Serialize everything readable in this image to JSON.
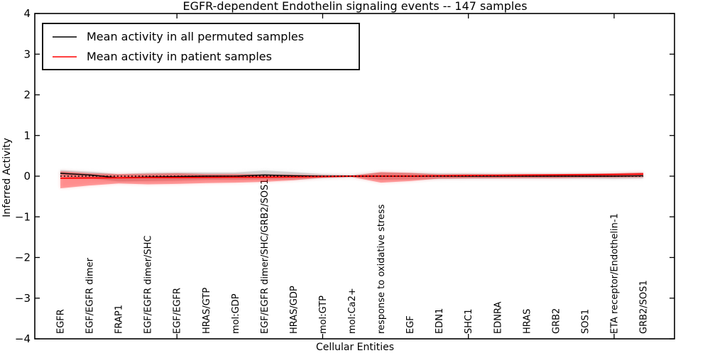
{
  "figure": {
    "title": "EGFR-dependent Endothelin signaling events -- 147 samples",
    "xlabel": "Cellular Entities",
    "ylabel": "Inferred Activity"
  },
  "legend": {
    "entries": [
      {
        "label": "Mean activity in all permuted samples",
        "color": "#000000"
      },
      {
        "label": "Mean activity in patient samples",
        "color": "#ff0000"
      }
    ]
  },
  "chart_data": {
    "type": "line",
    "title": "EGFR-dependent Endothelin signaling events -- 147 samples",
    "xlabel": "Cellular Entities",
    "ylabel": "Inferred Activity",
    "ylim": [
      -4,
      4
    ],
    "yticks": [
      -4,
      -3,
      -2,
      -1,
      0,
      1,
      2,
      3,
      4
    ],
    "grid": false,
    "legend_position": "upper left",
    "zero_reference_line": {
      "y": 0,
      "style": "dotted",
      "color": "#000000"
    },
    "categories": [
      "EGFR",
      "EGF/EGFR dimer",
      "FRAP1",
      "EGF/EGFR dimer/SHC",
      "EGF/EGFR",
      "HRAS/GTP",
      "mol:GDP",
      "EGF/EGFR dimer/SHC/GRB2/SOS1",
      "HRAS/GDP",
      "mol:GTP",
      "mol:Ca2+",
      "response to oxidative stress",
      "EGF",
      "EDN1",
      "SHC1",
      "EDNRA",
      "HRAS",
      "GRB2",
      "SOS1",
      "ETA receptor/Endothelin-1",
      "GRB2/SOS1"
    ],
    "series": [
      {
        "name": "Mean activity in all permuted samples",
        "color": "#000000",
        "line_style": "solid",
        "band_color": "#999999",
        "values": [
          0.07,
          0.03,
          -0.04,
          -0.02,
          -0.01,
          0.0,
          0.0,
          0.03,
          0.01,
          0.0,
          0.0,
          0.0,
          0.0,
          0.0,
          0.0,
          0.0,
          0.0,
          0.0,
          0.0,
          0.0,
          0.01
        ],
        "band_upper": [
          0.15,
          0.11,
          0.05,
          0.08,
          0.09,
          0.09,
          0.09,
          0.14,
          0.1,
          0.05,
          0.03,
          0.09,
          0.08,
          0.07,
          0.065,
          0.06,
          0.06,
          0.06,
          0.06,
          0.065,
          0.085
        ],
        "band_lower": [
          -0.01,
          -0.05,
          -0.13,
          -0.12,
          -0.11,
          -0.09,
          -0.09,
          -0.08,
          -0.08,
          -0.05,
          -0.03,
          -0.09,
          -0.08,
          -0.07,
          -0.065,
          -0.06,
          -0.06,
          -0.06,
          -0.06,
          -0.065,
          -0.055
        ]
      },
      {
        "name": "Mean activity in patient samples",
        "color": "#ff0000",
        "line_style": "solid",
        "band_color": "#ff0000",
        "values": [
          -0.05,
          -0.045,
          -0.04,
          -0.035,
          -0.035,
          -0.03,
          -0.025,
          -0.025,
          -0.02,
          -0.01,
          0.0,
          0.0,
          0.0,
          0.01,
          0.015,
          0.02,
          0.025,
          0.03,
          0.035,
          0.04,
          0.05
        ],
        "band_upper": [
          0.12,
          0.07,
          0.05,
          0.06,
          0.07,
          0.05,
          0.05,
          0.04,
          0.035,
          0.02,
          0.01,
          0.1,
          0.08,
          0.04,
          0.045,
          0.045,
          0.05,
          0.05,
          0.06,
          0.07,
          0.09
        ],
        "band_lower": [
          -0.3,
          -0.23,
          -0.18,
          -0.2,
          -0.19,
          -0.17,
          -0.16,
          -0.14,
          -0.1,
          -0.04,
          -0.02,
          -0.16,
          -0.12,
          -0.06,
          -0.05,
          -0.05,
          -0.045,
          -0.045,
          -0.035,
          -0.03,
          -0.025
        ]
      }
    ]
  }
}
